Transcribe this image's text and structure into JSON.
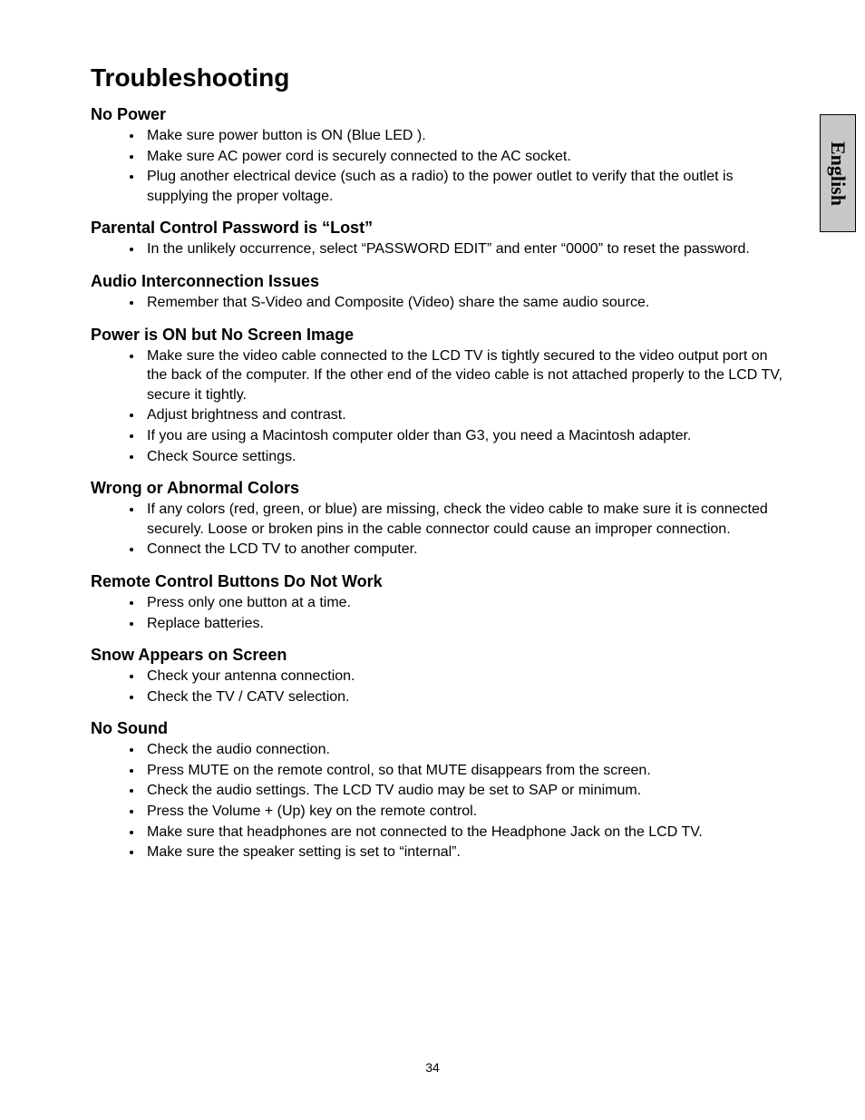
{
  "side_tab": {
    "label": "English",
    "bg_color": "#c8c8c8"
  },
  "page_title": "Troubleshooting",
  "page_number": "34",
  "sections": [
    {
      "heading": "No Power",
      "items": [
        "Make sure power button is ON (Blue LED ).",
        "Make sure AC power cord is securely connected to the AC socket.",
        "Plug another electrical device (such as a radio) to the power outlet to verify that the outlet is supplying the proper voltage."
      ]
    },
    {
      "heading": "Parental Control Password is “Lost”",
      "items": [
        "In the unlikely occurrence, select “PASSWORD EDIT” and enter “0000” to reset the password."
      ]
    },
    {
      "heading": "Audio Interconnection Issues",
      "items": [
        "Remember that S-Video and Composite (Video) share the same audio source."
      ]
    },
    {
      "heading": "Power is ON but No Screen Image",
      "justify": true,
      "items": [
        "Make sure the video cable connected to the LCD TV is tightly secured to the video output port on the back of the computer.   If the other end of the video cable is not attached properly to the LCD TV, secure it tightly.",
        "Adjust brightness and contrast.",
        "If you are using a Macintosh computer older than G3, you need a Macintosh adapter.",
        "Check Source settings."
      ]
    },
    {
      "heading": "Wrong or Abnormal Colors",
      "items": [
        "If any colors (red, green, or blue) are missing, check the video cable to make sure it is connected securely. Loose or broken pins in the cable connector could cause an improper connection.",
        "Connect the LCD TV to another computer."
      ]
    },
    {
      "heading": "Remote Control Buttons Do Not Work",
      "items": [
        "Press only one button at a time.",
        "Replace batteries."
      ]
    },
    {
      "heading": "Snow Appears on Screen",
      "items": [
        "Check your antenna connection.",
        "Check the TV / CATV selection."
      ]
    },
    {
      "heading": "No Sound",
      "items": [
        "Check the audio connection.",
        "Press MUTE on the remote control, so that MUTE disappears from the screen.",
        "Check the audio settings. The LCD TV audio may be set to SAP or minimum.",
        "Press the Volume + (Up) key on the remote control.",
        "Make sure that headphones are not connected to the Headphone Jack on the LCD TV.",
        "Make sure the speaker setting is set to “internal”."
      ]
    }
  ]
}
